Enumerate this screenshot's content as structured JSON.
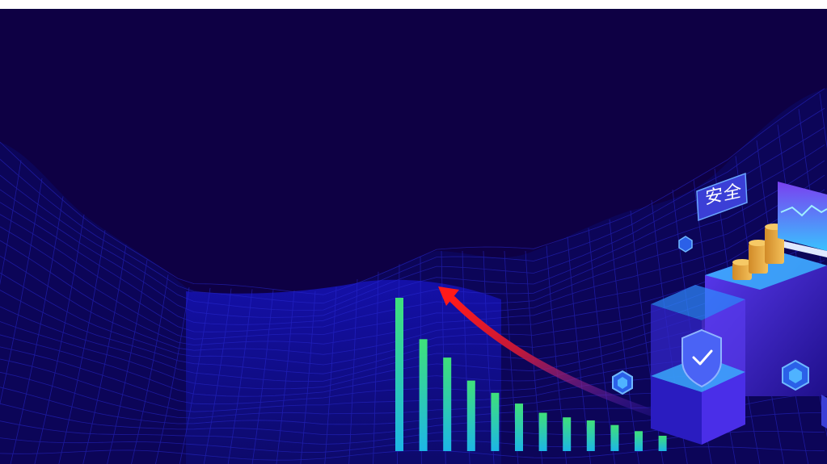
{
  "scene": {
    "badge_text": "安全",
    "colors": {
      "background": "#0e0044",
      "wireframe": "#2a2bd6",
      "bar_top": "#3fe07a",
      "bar_bottom": "#1db6e6",
      "arrow": "#e21b2a",
      "cube_face": "#4a3cf0",
      "coins": "#e8a23a"
    },
    "icons": [
      "shield-check-icon",
      "hexagon-cube-icon",
      "monitor-chart-icon",
      "coin-stack-icon",
      "trend-arrow-icon"
    ]
  },
  "chart_data": {
    "type": "bar",
    "categories": [
      "",
      "",
      "",
      "",
      "",
      "",
      "",
      "",
      "",
      "",
      "",
      ""
    ],
    "values": [
      10,
      7.3,
      6.1,
      4.6,
      3.8,
      3.1,
      2.5,
      2.2,
      2.0,
      1.7,
      1.3,
      1.0
    ],
    "title": "",
    "xlabel": "",
    "ylabel": "",
    "ylim": [
      0,
      10
    ]
  }
}
